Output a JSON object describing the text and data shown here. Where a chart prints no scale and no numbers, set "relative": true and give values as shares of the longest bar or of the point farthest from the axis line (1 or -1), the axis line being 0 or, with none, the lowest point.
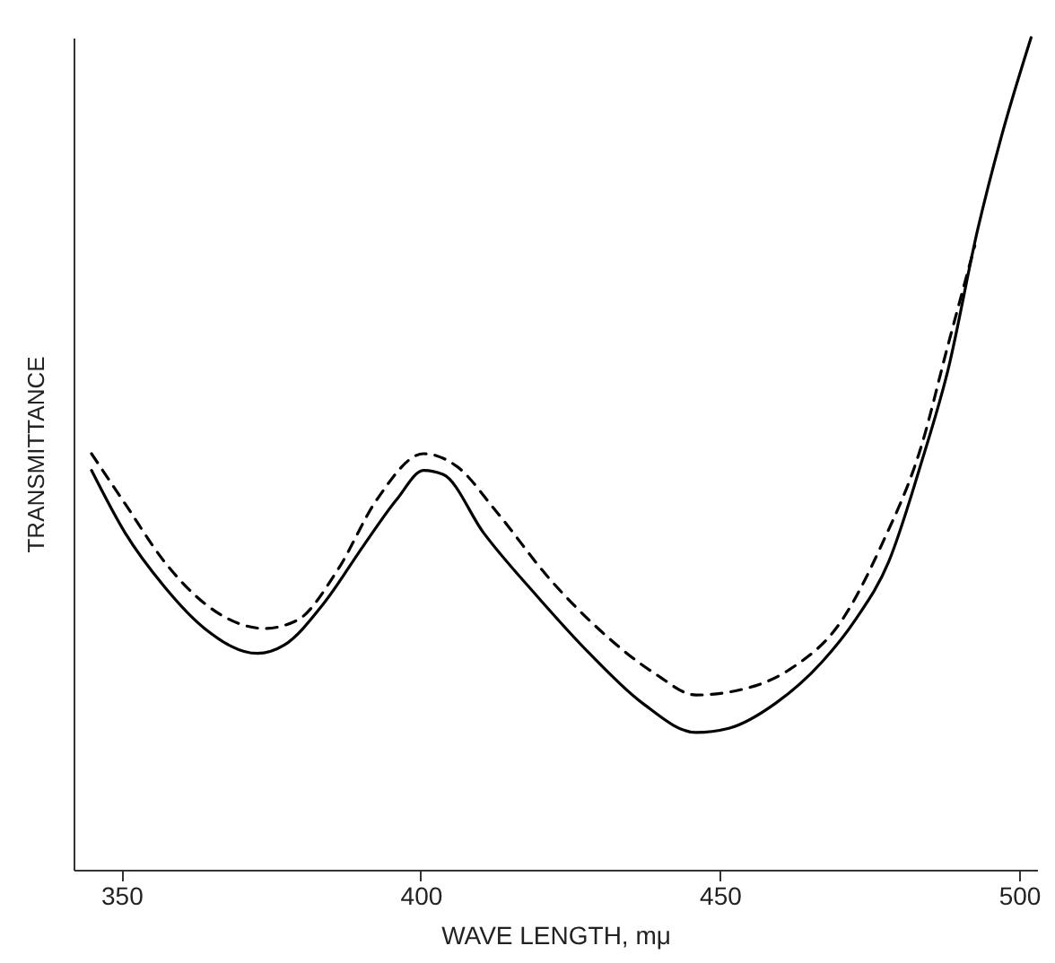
{
  "chart_data": {
    "type": "line",
    "relative": true,
    "xlabel": "WAVE LENGTH, mμ",
    "ylabel": "TRANSMITTANCE",
    "xlim": [
      342,
      503
    ],
    "xticks": [
      350,
      400,
      450,
      500
    ],
    "grid": false,
    "marker": "none",
    "series": [
      {
        "color": "#000000",
        "line_style": "solid",
        "x": [
          345.0,
          350.6,
          357.2,
          363.9,
          372.7,
          377.2,
          383.8,
          390.5,
          396.0,
          400.5,
          403.8,
          410.5,
          419.3,
          428.2,
          437.1,
          446.0,
          451.5,
          459.3,
          467.1,
          472.6,
          478.2,
          483.7,
          488.1,
          493.1,
          497.0,
          502.0
        ],
        "values": [
          0.48,
          0.405,
          0.34,
          0.29,
          0.26,
          0.27,
          0.32,
          0.39,
          0.445,
          0.48,
          0.475,
          0.405,
          0.33,
          0.26,
          0.2,
          0.165,
          0.17,
          0.2,
          0.25,
          0.3,
          0.37,
          0.49,
          0.6,
          0.77,
          0.88,
          1.0
        ]
      },
      {
        "color": "#000000",
        "line_style": "dashed",
        "x": [
          345.0,
          350.6,
          357.2,
          363.9,
          373.9,
          379.4,
          386.1,
          392.7,
          400.5,
          406.0,
          412.7,
          421.5,
          430.4,
          439.3,
          446.0,
          452.6,
          461.5,
          470.4,
          477.0,
          483.7,
          488.1,
          492.6
        ],
        "values": [
          0.5,
          0.44,
          0.37,
          0.32,
          0.29,
          0.3,
          0.36,
          0.445,
          0.5,
          0.485,
          0.43,
          0.35,
          0.285,
          0.235,
          0.21,
          0.215,
          0.24,
          0.3,
          0.39,
          0.51,
          0.63,
          0.75
        ]
      }
    ]
  }
}
